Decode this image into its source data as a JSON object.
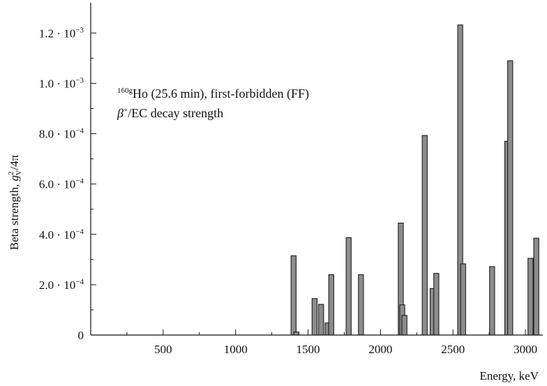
{
  "chart_data": {
    "type": "bar",
    "xlabel": "Energy, keV",
    "ylabel": "Beta strength, g²/4π",
    "ylabel_parts": {
      "main": "Beta strength, ",
      "symbol": "g",
      "sup": "2",
      "sub": "V",
      "tail": "/4π"
    },
    "xlim": [
      0,
      3120
    ],
    "ylim": [
      0,
      0.00132
    ],
    "x_ticks": [
      500,
      1000,
      1500,
      2000,
      2500,
      3000
    ],
    "x_minor_ticks": [
      250,
      750,
      1250,
      1750,
      2250,
      2750
    ],
    "y_ticks": [
      {
        "value": 0,
        "mantissa": "0",
        "exp": ""
      },
      {
        "value": 0.0002,
        "mantissa": "2.0 · 10",
        "exp": "−4"
      },
      {
        "value": 0.0004,
        "mantissa": "4.0 · 10",
        "exp": "−4"
      },
      {
        "value": 0.0006,
        "mantissa": "6.0 · 10",
        "exp": "−4"
      },
      {
        "value": 0.0008,
        "mantissa": "8.0 · 10",
        "exp": "−4"
      },
      {
        "value": 0.001,
        "mantissa": "1.0 · 10",
        "exp": "−3"
      },
      {
        "value": 0.0012,
        "mantissa": "1.2 · 10",
        "exp": "−3"
      }
    ],
    "bar_width_keV": 35,
    "bars": [
      {
        "x": 1400,
        "y": 0.000315
      },
      {
        "x": 1420,
        "y": 1.2e-05
      },
      {
        "x": 1545,
        "y": 0.000145
      },
      {
        "x": 1590,
        "y": 0.000122
      },
      {
        "x": 1635,
        "y": 4.8e-05
      },
      {
        "x": 1660,
        "y": 0.00024
      },
      {
        "x": 1780,
        "y": 0.000387
      },
      {
        "x": 1865,
        "y": 0.00024
      },
      {
        "x": 2140,
        "y": 0.000445
      },
      {
        "x": 2150,
        "y": 0.00012
      },
      {
        "x": 2165,
        "y": 7.8e-05
      },
      {
        "x": 2305,
        "y": 0.000793
      },
      {
        "x": 2360,
        "y": 0.000185
      },
      {
        "x": 2385,
        "y": 0.000245
      },
      {
        "x": 2550,
        "y": 0.001232
      },
      {
        "x": 2570,
        "y": 0.000283
      },
      {
        "x": 2770,
        "y": 0.000272
      },
      {
        "x": 2875,
        "y": 0.00077
      },
      {
        "x": 2895,
        "y": 0.00109
      },
      {
        "x": 3035,
        "y": 0.000305
      },
      {
        "x": 3075,
        "y": 0.000385
      }
    ],
    "bar_color": "#8c8c8c",
    "bar_edge_color": "#111111",
    "grid": false,
    "annotation": {
      "line1_sup": "160g",
      "line1_text": "Ho (25.6 min), first-forbidden (FF)",
      "line2_beta": "β",
      "line2_sup": "+",
      "line2_text": "/EC decay strength"
    }
  }
}
